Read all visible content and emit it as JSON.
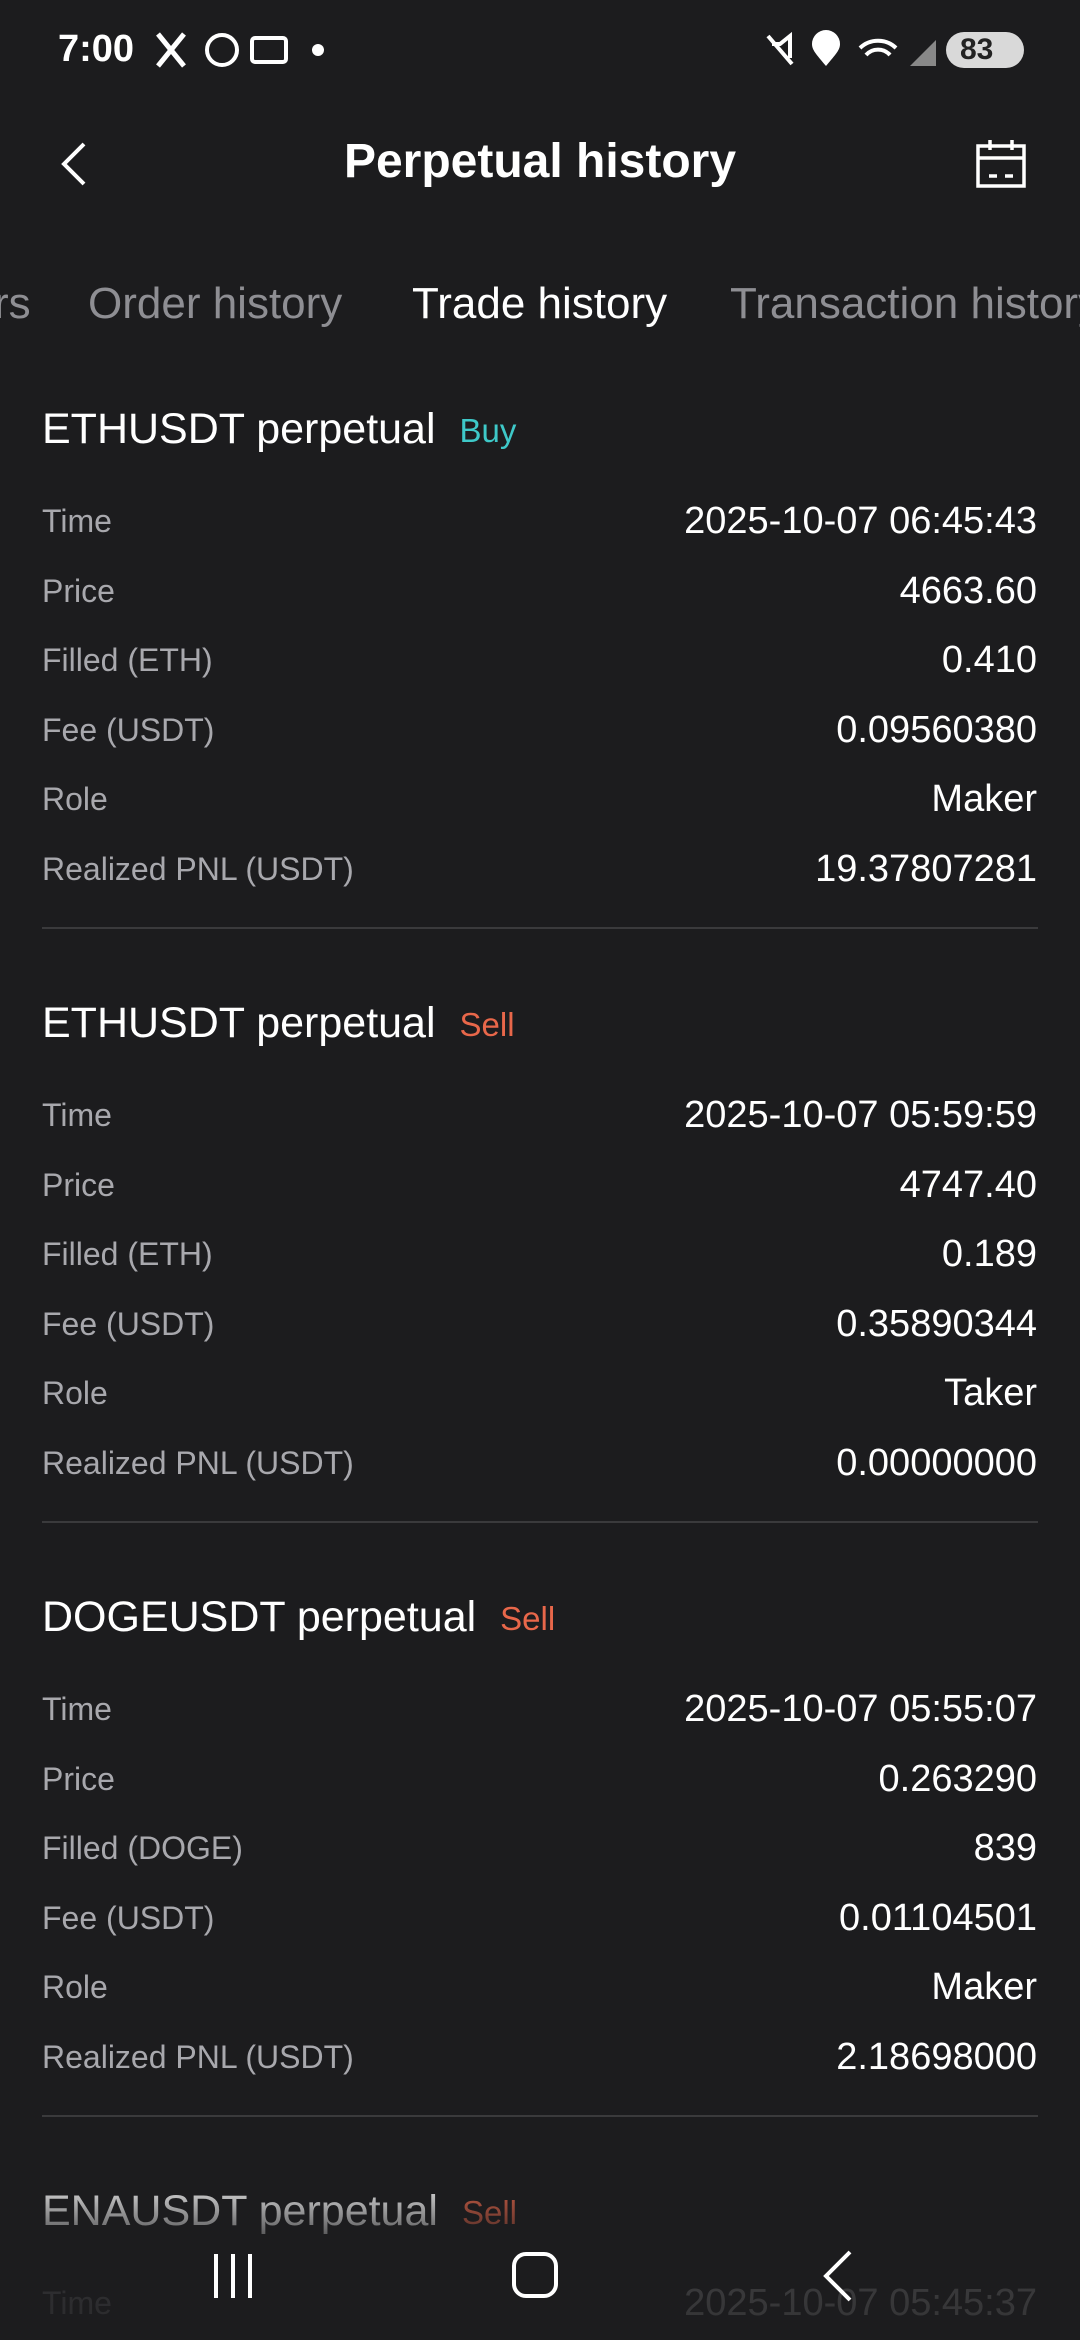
{
  "status_bar": {
    "time": "7:00",
    "battery": "83"
  },
  "header": {
    "title": "Perpetual history"
  },
  "tabs": [
    "rs",
    "Order history",
    "Trade history",
    "Transaction history"
  ],
  "active_tab": 2,
  "trades": [
    {
      "pair": "ETHUSDT perpetual",
      "side": "Buy",
      "rows": [
        [
          "Time",
          "2025-10-07 06:45:43"
        ],
        [
          "Price",
          "4663.60"
        ],
        [
          "Filled (ETH)",
          "0.410"
        ],
        [
          "Fee (USDT)",
          "0.09560380"
        ],
        [
          "Role",
          "Maker"
        ],
        [
          "Realized PNL (USDT)",
          "19.37807281"
        ]
      ]
    },
    {
      "pair": "ETHUSDT perpetual",
      "side": "Sell",
      "rows": [
        [
          "Time",
          "2025-10-07 05:59:59"
        ],
        [
          "Price",
          "4747.40"
        ],
        [
          "Filled (ETH)",
          "0.189"
        ],
        [
          "Fee (USDT)",
          "0.35890344"
        ],
        [
          "Role",
          "Taker"
        ],
        [
          "Realized PNL (USDT)",
          "0.00000000"
        ]
      ]
    },
    {
      "pair": "DOGEUSDT perpetual",
      "side": "Sell",
      "rows": [
        [
          "Time",
          "2025-10-07 05:55:07"
        ],
        [
          "Price",
          "0.263290"
        ],
        [
          "Filled (DOGE)",
          "839"
        ],
        [
          "Fee (USDT)",
          "0.01104501"
        ],
        [
          "Role",
          "Maker"
        ],
        [
          "Realized PNL (USDT)",
          "2.18698000"
        ]
      ]
    },
    {
      "pair": "ENAUSDT perpetual",
      "side": "Sell",
      "rows": [
        [
          "Time",
          "2025-10-07 05:45:37"
        ]
      ]
    }
  ]
}
